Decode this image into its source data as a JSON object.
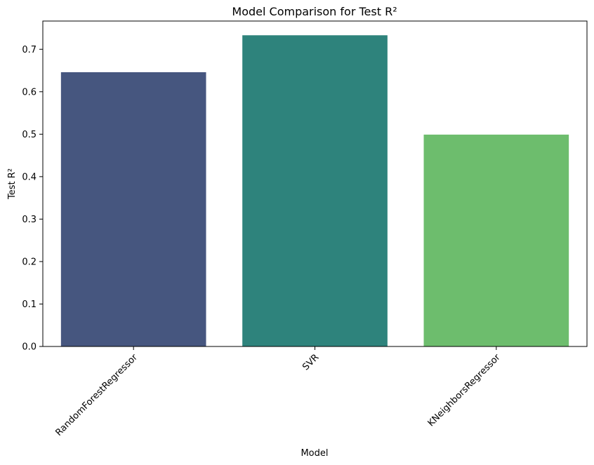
{
  "chart_data": {
    "type": "bar",
    "title": "Model Comparison for Test R²",
    "xlabel": "Model",
    "ylabel": "Test R²",
    "categories": [
      "RandomForestRegressor",
      "SVR",
      "KNeighborsRegressor"
    ],
    "values": [
      0.646,
      0.733,
      0.499
    ],
    "ylim": [
      0,
      0.7665
    ],
    "yticks": [
      0.0,
      0.1,
      0.2,
      0.3,
      0.4,
      0.5,
      0.6,
      0.7
    ],
    "ytick_labels": [
      "0.0",
      "0.1",
      "0.2",
      "0.3",
      "0.4",
      "0.5",
      "0.6",
      "0.7"
    ],
    "colors": [
      "#46567f",
      "#2e837c",
      "#6dbd6d"
    ],
    "grid": false,
    "legend": "none",
    "xtick_rotation": 45
  }
}
